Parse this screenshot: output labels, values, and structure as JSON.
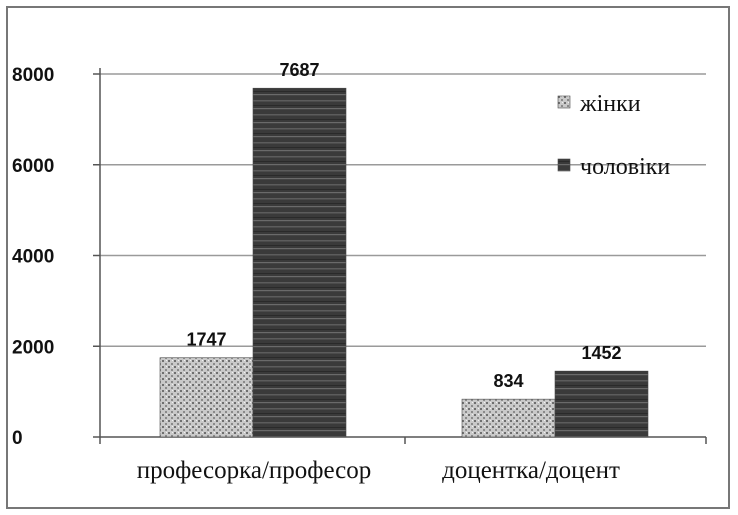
{
  "chart_data": {
    "type": "bar",
    "categories": [
      "професорка/професор",
      "доцентка/доцент"
    ],
    "series": [
      {
        "name": "жінки",
        "values": [
          1747,
          834
        ],
        "color": "#b8b8b8"
      },
      {
        "name": "чоловіки",
        "values": [
          7687,
          1452
        ],
        "color": "#3a3a3a"
      }
    ],
    "title": "",
    "xlabel": "",
    "ylabel": "",
    "ylim": [
      0,
      8000
    ],
    "yticks": [
      0,
      2000,
      4000,
      6000,
      8000
    ],
    "ytick_labels": [
      "0",
      "2000",
      "4000",
      "6000",
      "8000"
    ],
    "grid": true,
    "legend_position": "top-right",
    "data_labels": true
  }
}
